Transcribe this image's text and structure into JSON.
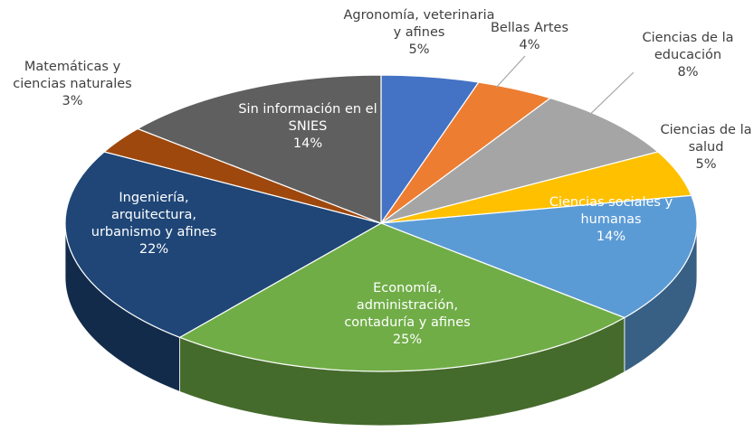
{
  "chart_data": {
    "type": "pie3d",
    "categories": [
      "Agronomía, veterinaria y afines",
      "Bellas Artes",
      "Ciencias de la educación",
      "Ciencias de la salud",
      "Ciencias sociales y humanas",
      "Economía, administración, contaduría y afines",
      "Ingeniería, arquitectura, urbanismo y afines",
      "Matemáticas y ciencias naturales",
      "Sin información en el SNIES"
    ],
    "values": [
      5,
      4,
      8,
      5,
      14,
      25,
      22,
      3,
      14
    ],
    "value_labels": [
      "5%",
      "4%",
      "8%",
      "5%",
      "14%",
      "25%",
      "22%",
      "3%",
      "14%"
    ],
    "colors": [
      "#4472c4",
      "#ed7d31",
      "#a5a5a5",
      "#ffc000",
      "#5b9bd5",
      "#70ad47",
      "#1f4677",
      "#9e480e",
      "#5f5f5f"
    ]
  }
}
